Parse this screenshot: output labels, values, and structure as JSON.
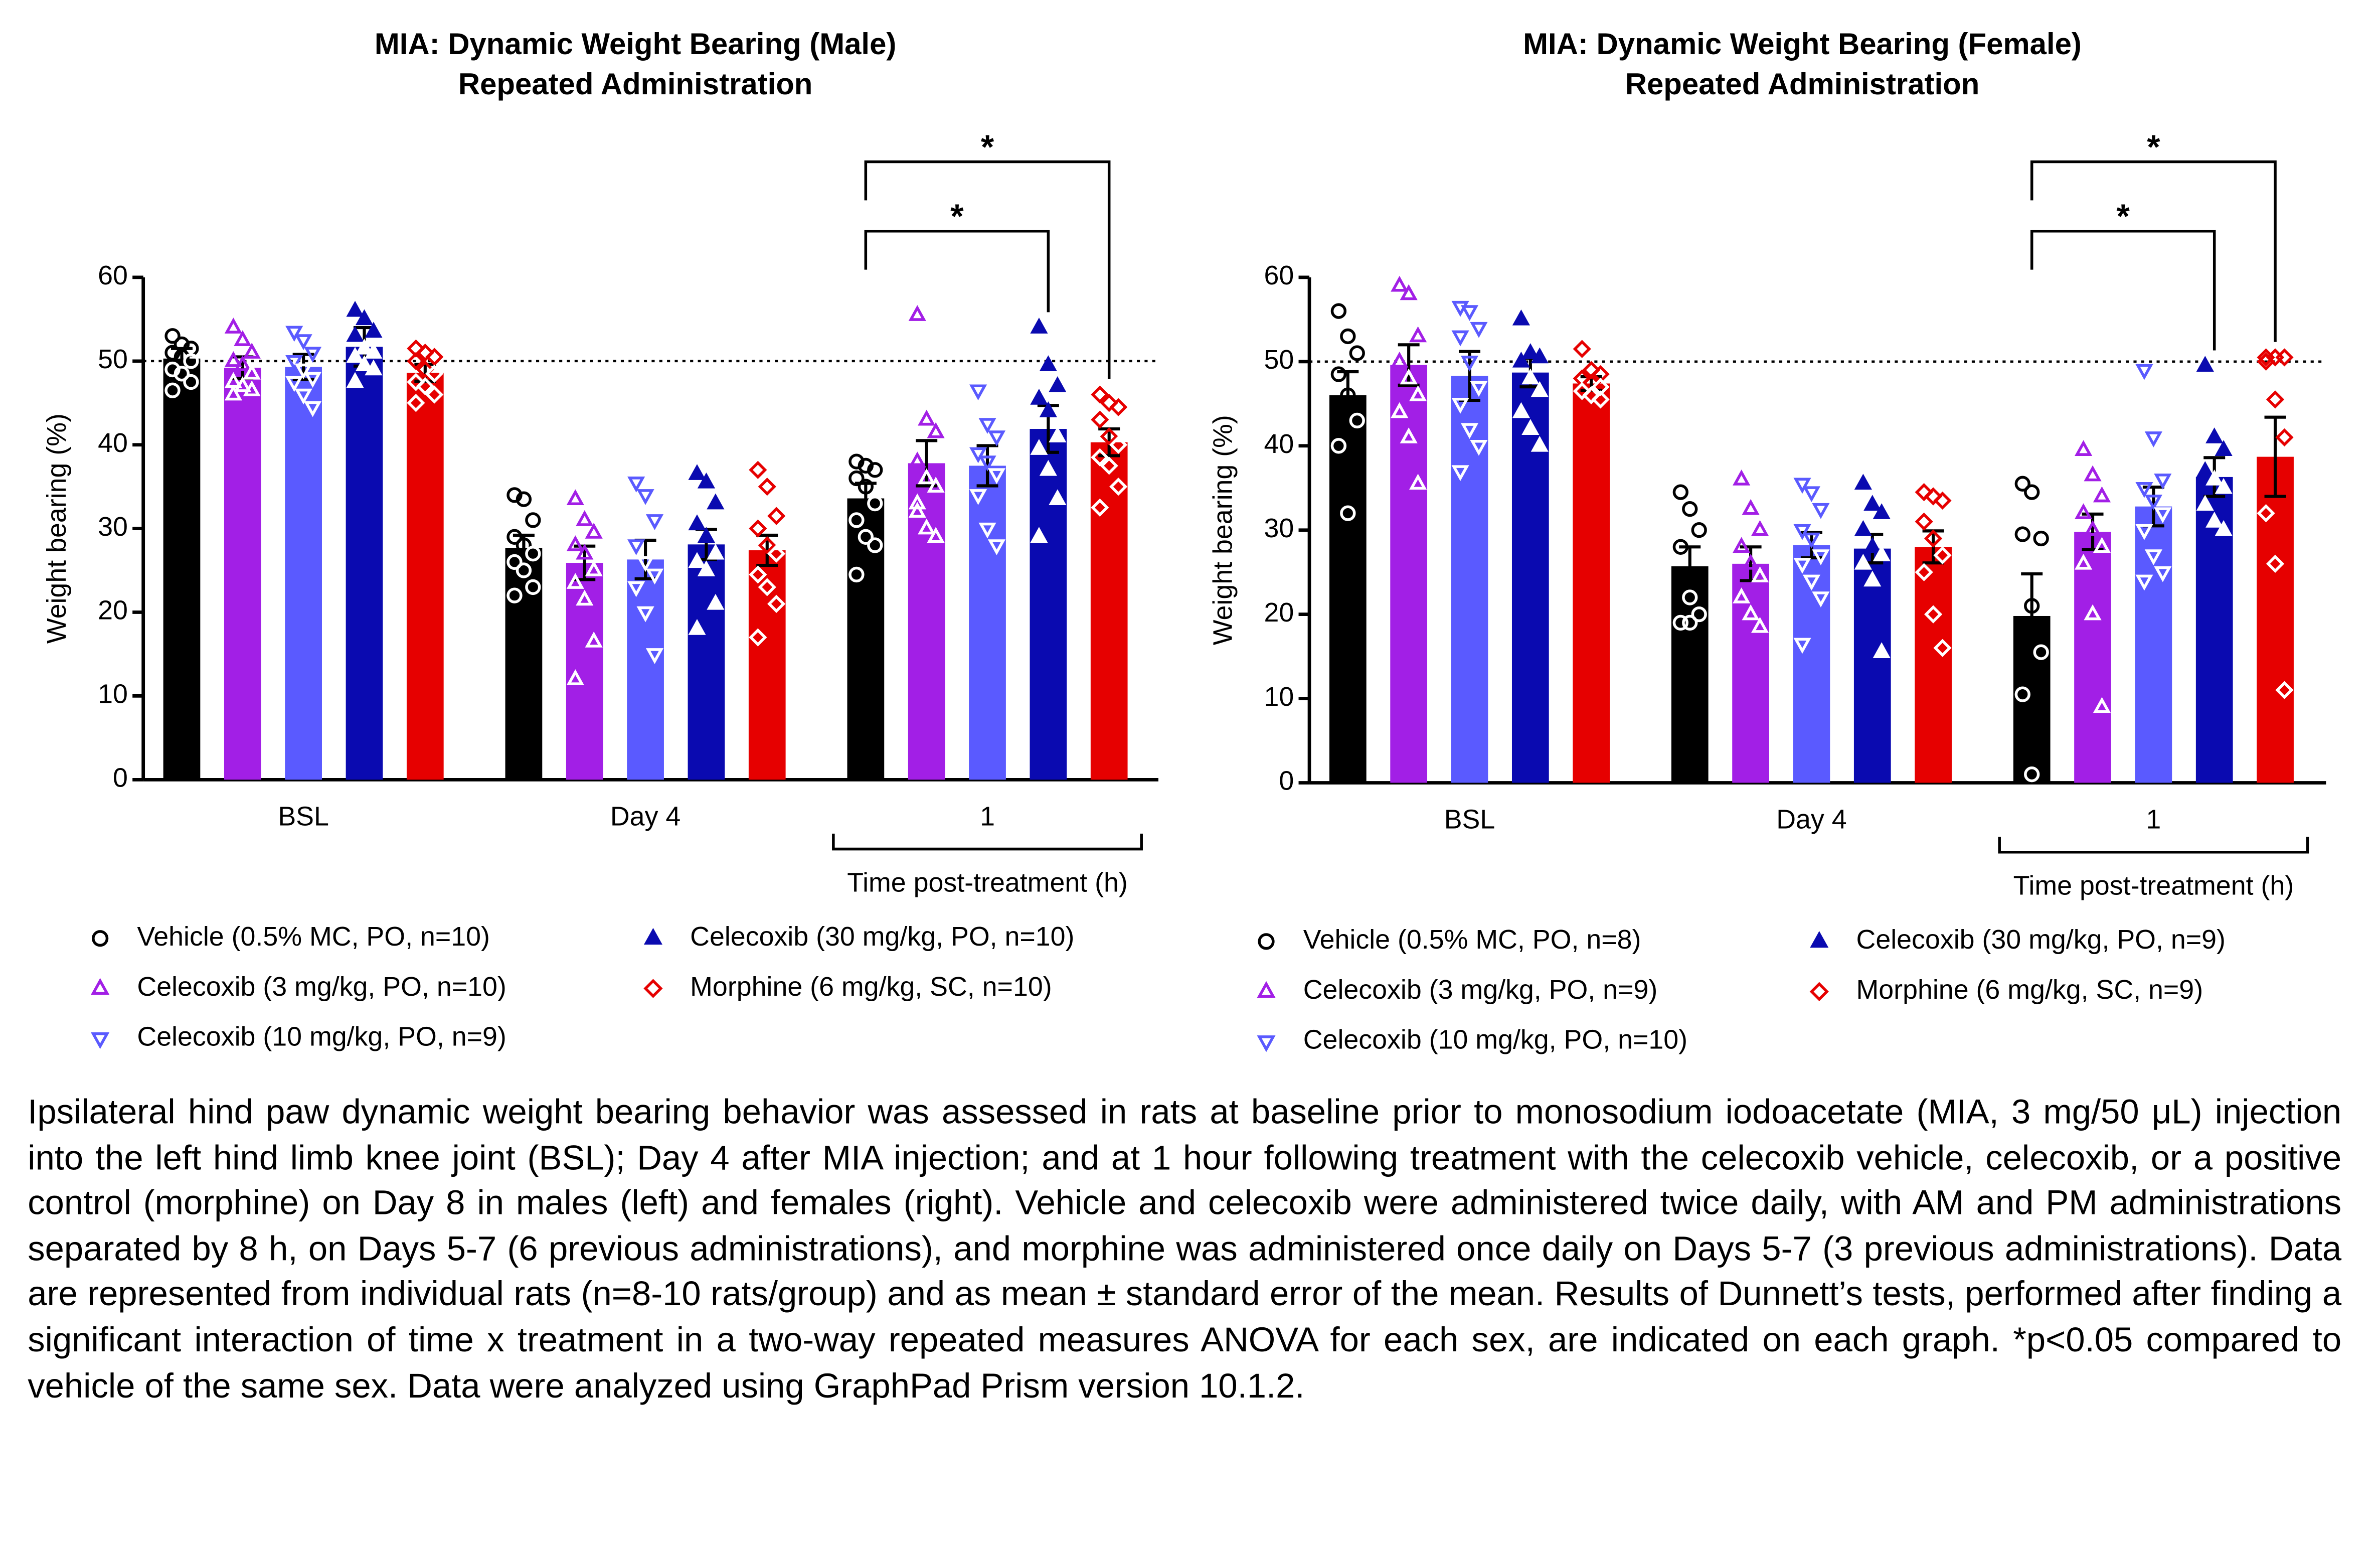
{
  "chart_data": [
    {
      "type": "bar",
      "title": "MIA: Dynamic Weight Bearing (Male)",
      "subtitle": "Repeated Administration",
      "ylabel": "Weight bearing (%)",
      "xlabel": "Time post-treatment (h)",
      "categories": [
        "BSL",
        "Day 4",
        "1"
      ],
      "ylim": [
        0,
        60
      ],
      "yticks": [
        0,
        10,
        20,
        30,
        40,
        50,
        60
      ],
      "grid": false,
      "refline": 50,
      "series": [
        {
          "name": "Vehicle (0.5% MC, PO, n=10)",
          "color": "#000000",
          "marker": "circle-open",
          "values": [
            50.3,
            27.7,
            33.6
          ],
          "errors": [
            1.2,
            1.5,
            1.8
          ],
          "points": [
            [
              53,
              52,
              51.5,
              51,
              50.5,
              50,
              49,
              48.5,
              47.5,
              46.5
            ],
            [
              34,
              33.5,
              31,
              29,
              28,
              27,
              26,
              25,
              23,
              22
            ],
            [
              38,
              37.5,
              37,
              36,
              35,
              33,
              31,
              29,
              28,
              24.5
            ]
          ]
        },
        {
          "name": "Celecoxib (3 mg/kg, PO, n=10)",
          "color": "#a21fe6",
          "marker": "triangle-up-open",
          "values": [
            49.2,
            25.9,
            37.8
          ],
          "errors": [
            1.3,
            2.0,
            2.7
          ],
          "points": [
            [
              54,
              52.5,
              51,
              50,
              49.5,
              48.5,
              47.5,
              47,
              46.5,
              46
            ],
            [
              33.5,
              31,
              29.5,
              28,
              27,
              25,
              23.5,
              21.5,
              16.5,
              12
            ],
            [
              55.5,
              43,
              41.5,
              38,
              36,
              35,
              33,
              30,
              29,
              32
            ]
          ]
        },
        {
          "name": "Celecoxib (10 mg/kg, PO, n=9)",
          "color": "#5a5aff",
          "marker": "triangle-down-open",
          "values": [
            49.3,
            26.3,
            37.5
          ],
          "errors": [
            1.5,
            2.3,
            2.4
          ],
          "points": [
            [
              53.5,
              52.5,
              51,
              50,
              49,
              48,
              47.5,
              46,
              44.5
            ],
            [
              35.5,
              34,
              31,
              28,
              26,
              24.5,
              23,
              20,
              15
            ],
            [
              46.5,
              42.5,
              41,
              39,
              38,
              36.5,
              34,
              30,
              28
            ]
          ]
        },
        {
          "name": "Celecoxib (30 mg/kg, PO, n=10)",
          "color": "#0a0ab0",
          "marker": "triangle-up-filled",
          "values": [
            51.7,
            28.1,
            41.9
          ],
          "errors": [
            2.3,
            1.8,
            2.8
          ],
          "points": [
            [
              56,
              55,
              53.5,
              53,
              51.5,
              51,
              50.5,
              49.5,
              49,
              47.5
            ],
            [
              36.5,
              35.5,
              33,
              30.5,
              29,
              27,
              26,
              25,
              21,
              18
            ],
            [
              54,
              49.5,
              47,
              45.5,
              44,
              41,
              39.5,
              37,
              33.5,
              29
            ]
          ]
        },
        {
          "name": "Morphine (6 mg/kg, SC, n=10)",
          "color": "#e60000",
          "marker": "diamond-open",
          "values": [
            48.6,
            27.4,
            40.3
          ],
          "errors": [
            1.0,
            1.8,
            1.6
          ],
          "points": [
            [
              51.5,
              51,
              50.5,
              50,
              49,
              48.5,
              47.5,
              47,
              46,
              45
            ],
            [
              37,
              35,
              31.5,
              30,
              28,
              27,
              24.5,
              23,
              21,
              17
            ],
            [
              46,
              45,
              44.5,
              43,
              41,
              40,
              38.5,
              37.5,
              35,
              32.5
            ]
          ]
        }
      ],
      "comparisons": [
        {
          "label": "*",
          "category": 2,
          "series": [
            0,
            3
          ]
        },
        {
          "label": "*",
          "category": 2,
          "series": [
            0,
            4
          ]
        }
      ]
    },
    {
      "type": "bar",
      "title": "MIA: Dynamic Weight Bearing (Female)",
      "subtitle": "Repeated Administration",
      "ylabel": "Weight bearing (%)",
      "xlabel": "Time post-treatment (h)",
      "categories": [
        "BSL",
        "Day 4",
        "1"
      ],
      "ylim": [
        0,
        60
      ],
      "yticks": [
        0,
        10,
        20,
        30,
        40,
        50,
        60
      ],
      "grid": false,
      "refline": 50,
      "series": [
        {
          "name": "Vehicle (0.5% MC, PO, n=8)",
          "color": "#000000",
          "marker": "circle-open",
          "values": [
            46.0,
            25.7,
            19.8
          ],
          "errors": [
            2.8,
            2.3,
            5.0
          ],
          "points": [
            [
              56,
              53,
              51,
              48.5,
              46,
              43,
              40,
              32
            ],
            [
              34.5,
              32.5,
              30,
              28,
              22,
              20,
              19,
              19
            ],
            [
              35.5,
              34.5,
              29,
              29.5,
              21,
              15.5,
              10.5,
              1
            ]
          ]
        },
        {
          "name": "Celecoxib (3 mg/kg, PO, n=9)",
          "color": "#a21fe6",
          "marker": "triangle-up-open",
          "values": [
            49.6,
            26.0,
            29.8
          ],
          "errors": [
            2.4,
            2.0,
            2.1
          ],
          "points": [
            [
              59,
              58,
              53,
              50,
              48,
              46,
              44,
              41,
              35.5
            ],
            [
              36,
              32.5,
              30,
              28,
              26,
              24.5,
              22,
              20,
              18.5
            ],
            [
              39.5,
              36.5,
              34,
              32,
              30,
              28,
              26,
              20,
              9
            ]
          ]
        },
        {
          "name": "Celecoxib (10 mg/kg, PO, n=10)",
          "color": "#5a5aff",
          "marker": "triangle-down-open",
          "values": [
            48.3,
            28.2,
            32.8
          ],
          "errors": [
            2.9,
            1.5,
            2.3
          ],
          "points": [
            [
              56.5,
              56,
              54,
              53,
              50,
              47,
              45,
              42,
              40,
              37
            ],
            [
              35.5,
              34.5,
              32.5,
              30,
              29,
              27,
              26,
              24,
              22,
              16.5
            ],
            [
              49,
              41,
              36,
              35,
              33.5,
              32,
              30,
              27,
              25,
              24
            ]
          ]
        },
        {
          "name": "Celecoxib (30 mg/kg, PO, n=9)",
          "color": "#0a0ab0",
          "marker": "triangle-up-filled",
          "values": [
            48.7,
            27.8,
            36.3
          ],
          "errors": [
            1.7,
            1.7,
            2.3
          ],
          "points": [
            [
              55,
              51,
              50.5,
              50,
              48,
              46.5,
              44,
              42,
              40
            ],
            [
              35.5,
              33,
              32,
              30,
              28,
              27,
              26,
              24,
              15.5
            ],
            [
              49.5,
              41,
              39.5,
              37,
              36,
              35,
              33,
              31,
              30
            ]
          ]
        },
        {
          "name": "Morphine (6 mg/kg, SC, n=9)",
          "color": "#e60000",
          "marker": "diamond-open",
          "values": [
            47.4,
            28.0,
            38.7
          ],
          "errors": [
            0.8,
            1.9,
            4.7
          ],
          "points": [
            [
              51.5,
              49,
              48.5,
              48,
              47.5,
              47,
              46.5,
              46,
              45.5
            ],
            [
              34.5,
              34,
              33.5,
              31,
              29,
              27,
              25,
              20,
              16
            ],
            [
              50.5,
              50.5,
              50.5,
              50,
              45.5,
              41,
              32,
              26,
              11
            ]
          ]
        }
      ],
      "comparisons": [
        {
          "label": "*",
          "category": 2,
          "series": [
            0,
            3
          ]
        },
        {
          "label": "*",
          "category": 2,
          "series": [
            0,
            4
          ]
        }
      ]
    }
  ],
  "caption": "Ipsilateral hind paw dynamic weight bearing behavior was assessed in rats at baseline prior to monosodium iodoacetate (MIA, 3 mg/50 μL) injection into the left hind limb knee joint (BSL); Day 4 after MIA injection; and at 1 hour following treatment with the celecoxib vehicle, celecoxib, or a positive control (morphine) on Day 8 in males (left) and females (right). Vehicle and celecoxib were administered twice daily, with AM and PM administrations separated by 8 h, on Days 5-7 (6 previous administrations), and morphine was administered once daily on Days 5-7 (3 previous administrations). Data are represented from individual rats (n=8-10 rats/group) and as mean ± standard error of the mean. Results of Dunnett’s tests, performed after finding a significant interaction of time x treatment in a two-way repeated measures ANOVA for each sex, are indicated on each graph. *p<0.05 compared to vehicle of the same sex. Data were analyzed using GraphPad Prism version 10.1.2."
}
